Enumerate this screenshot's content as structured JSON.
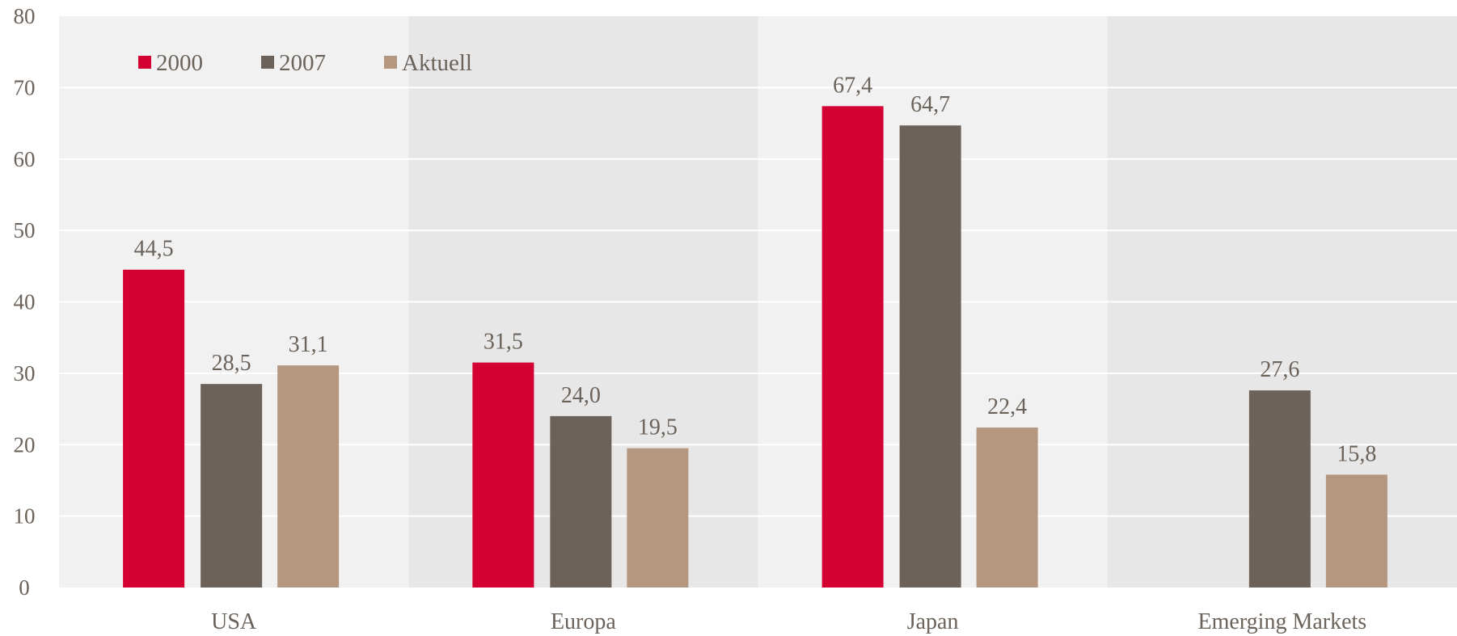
{
  "chart_data": {
    "type": "bar",
    "title": "",
    "xlabel": "",
    "ylabel": "",
    "categories": [
      "USA",
      "Europa",
      "Japan",
      "Emerging Markets"
    ],
    "series": [
      {
        "name": "2000",
        "color": "#d50032",
        "values": [
          44.5,
          31.5,
          67.4,
          null
        ],
        "labels": [
          "44,5",
          "31,5",
          "67,4",
          ""
        ]
      },
      {
        "name": "2007",
        "color": "#6c6259",
        "values": [
          28.5,
          24.0,
          64.7,
          27.6
        ],
        "labels": [
          "28,5",
          "24,0",
          "64,7",
          "27,6"
        ]
      },
      {
        "name": "Aktuell",
        "color": "#b59780",
        "values": [
          31.1,
          19.5,
          22.4,
          15.8
        ],
        "labels": [
          "31,1",
          "19,5",
          "22,4",
          "15,8"
        ]
      }
    ],
    "ylim": [
      0,
      80
    ],
    "yticks": [
      0,
      10,
      20,
      30,
      40,
      50,
      60,
      70,
      80
    ],
    "grid": true,
    "legend_position": "top-left",
    "band_colors": [
      "#f1f1f1",
      "#e7e7e7"
    ],
    "text_color": "#6b625a"
  }
}
